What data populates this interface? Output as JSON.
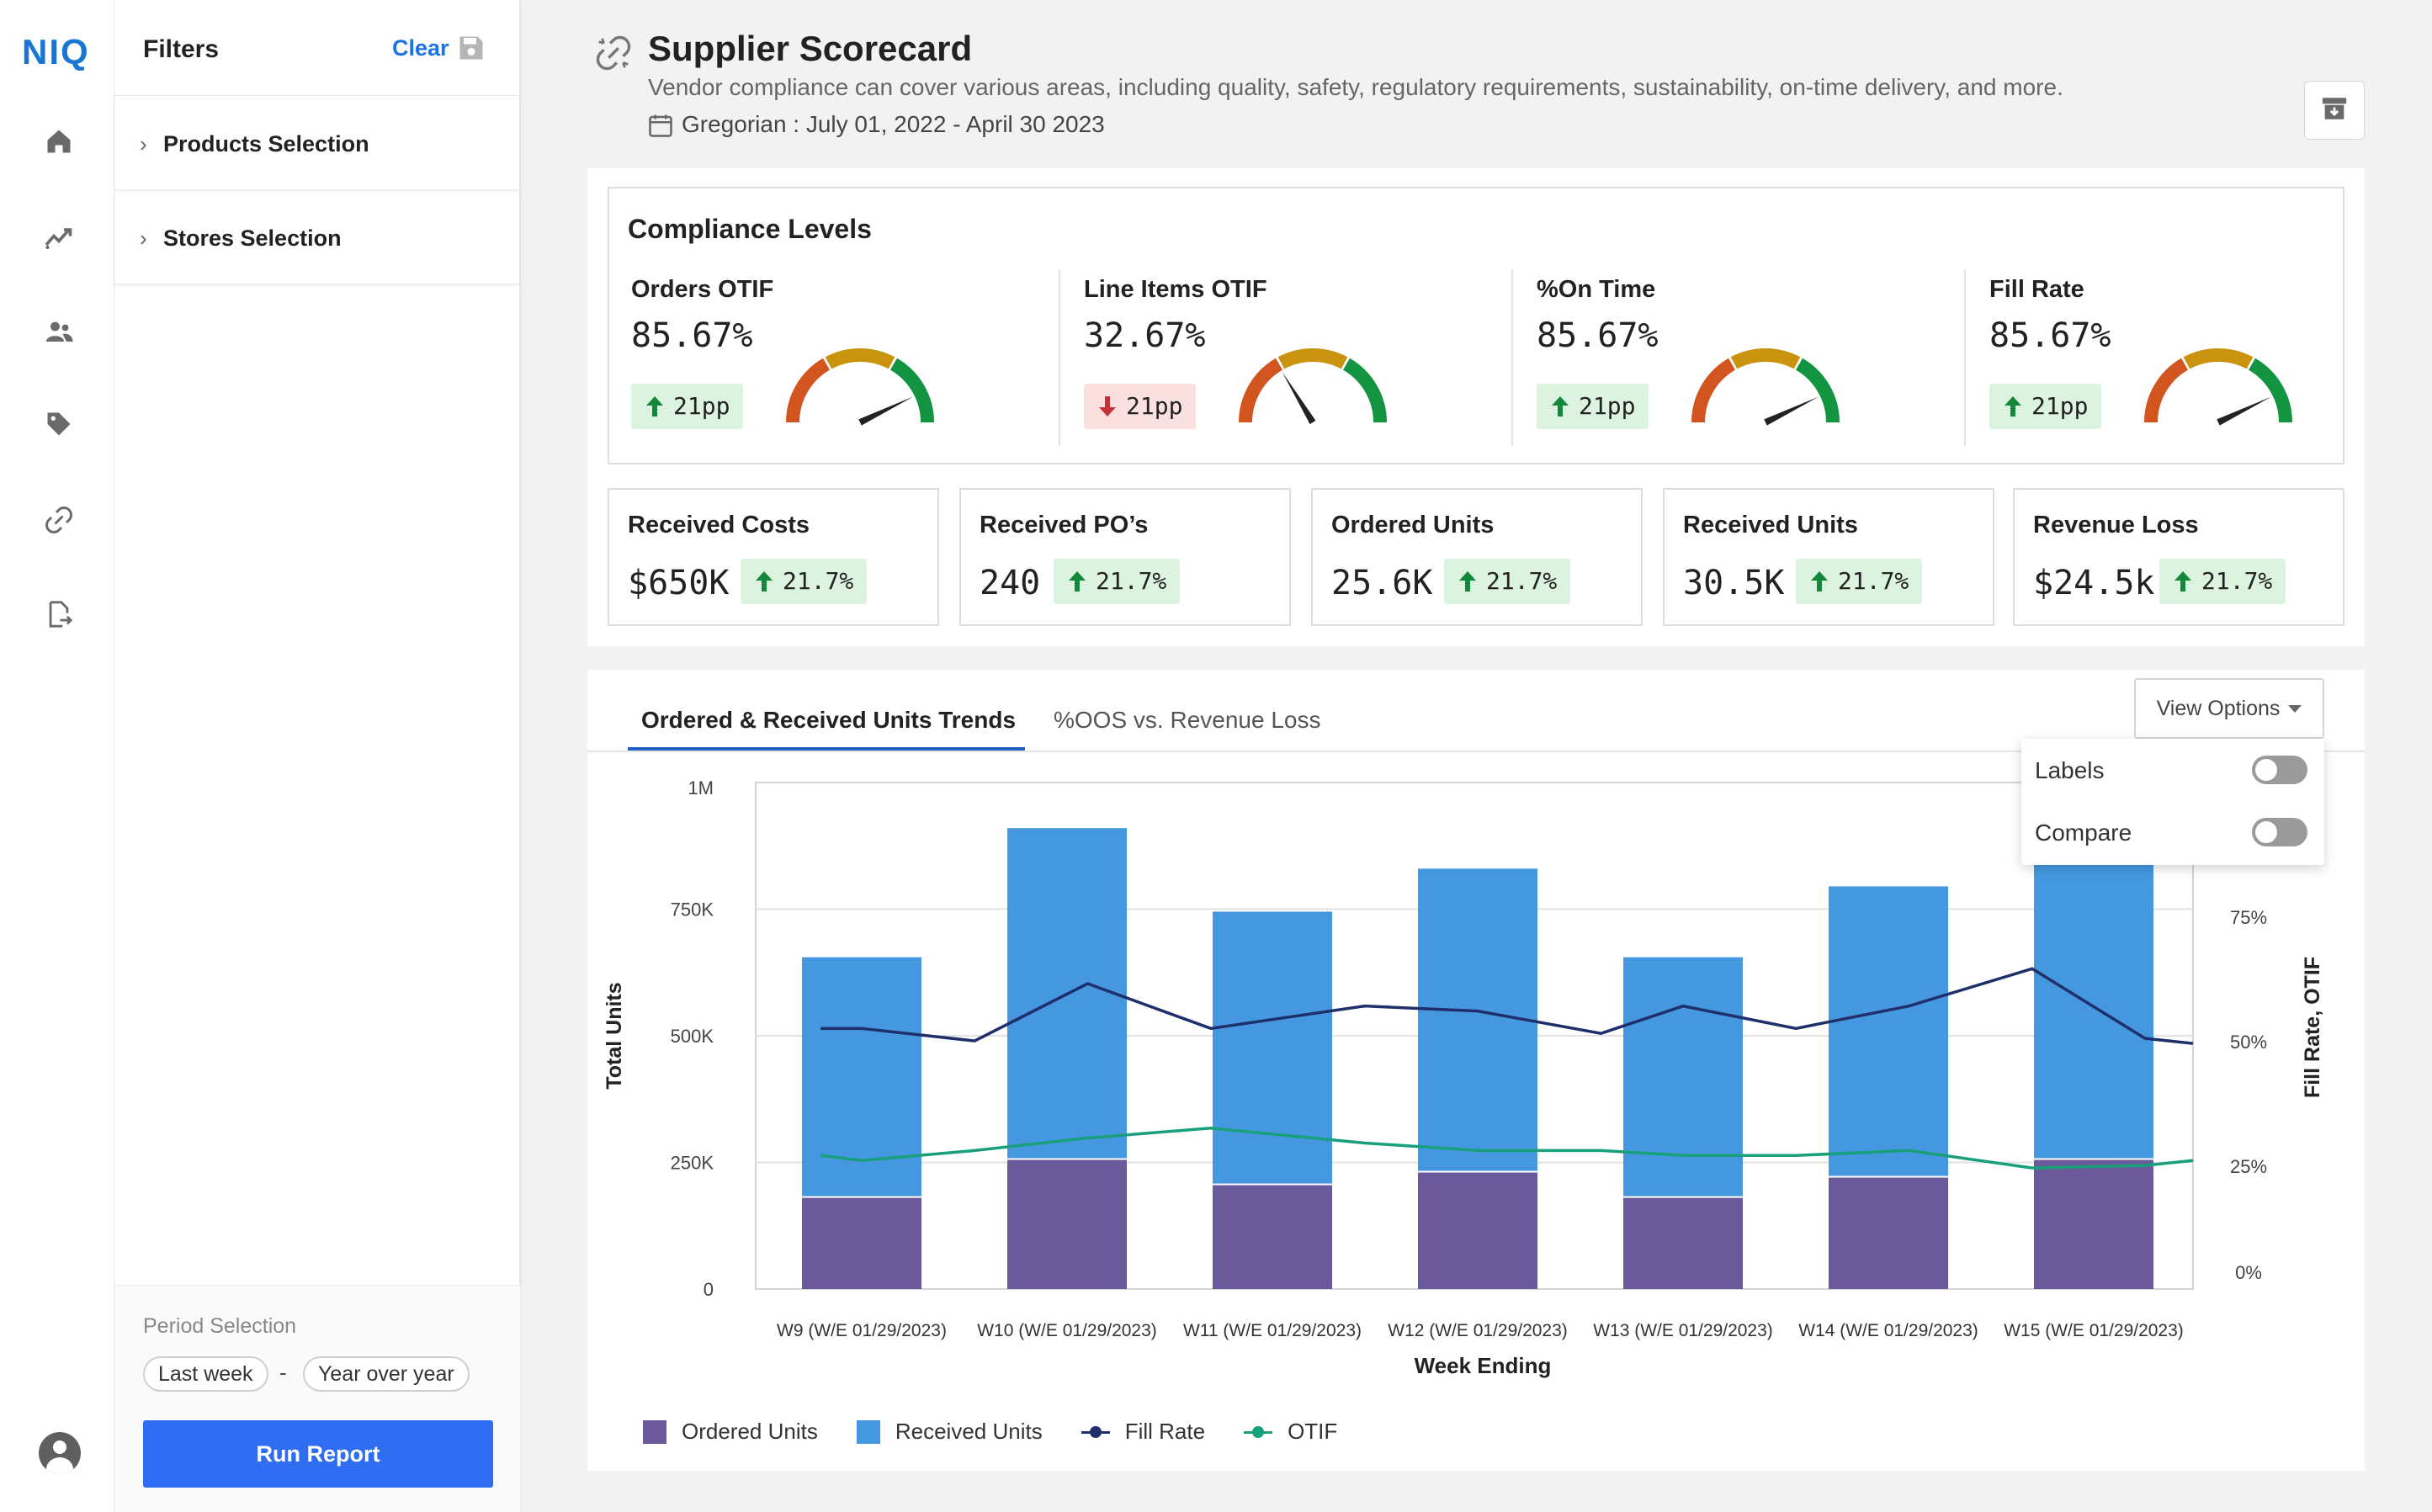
{
  "app": {
    "logo": "NIQ"
  },
  "rail": {
    "icons": [
      "home-icon",
      "trend-icon",
      "users-icon",
      "tag-icon",
      "link-icon",
      "report-export-icon",
      "user-avatar-icon"
    ]
  },
  "filters": {
    "title": "Filters",
    "clear_label": "Clear",
    "sections": [
      {
        "label": "Products Selection"
      },
      {
        "label": "Stores Selection"
      }
    ],
    "period": {
      "title": "Period Selection",
      "from": "Last week",
      "separator": "-",
      "to": "Year over year"
    },
    "run_label": "Run Report"
  },
  "header": {
    "title": "Supplier Scorecard",
    "description": "Vendor compliance can cover various areas, including quality, safety, regulatory requirements, sustainability, on-time delivery, and more.",
    "date_range": "Gregorian : July 01, 2022  -  April 30 2023"
  },
  "compliance": {
    "title": "Compliance Levels",
    "gauges": [
      {
        "name": "Orders OTIF",
        "value": "85.67%",
        "delta": "21pp",
        "direction": "up",
        "level": 0.8567
      },
      {
        "name": "Line Items OTIF",
        "value": "32.67%",
        "delta": "21pp",
        "direction": "down",
        "level": 0.3267
      },
      {
        "name": "%On Time",
        "value": "85.67%",
        "delta": "21pp",
        "direction": "up",
        "level": 0.8567
      },
      {
        "name": "Fill Rate",
        "value": "85.67%",
        "delta": "21pp",
        "direction": "up",
        "level": 0.8567
      }
    ]
  },
  "metrics": [
    {
      "name": "Received Costs",
      "value": "$650K",
      "delta": "21.7%"
    },
    {
      "name": "Received PO’s",
      "value": "240",
      "delta": "21.7%"
    },
    {
      "name": "Ordered Units",
      "value": "25.6K",
      "delta": "21.7%"
    },
    {
      "name": "Received Units",
      "value": "30.5K",
      "delta": "21.7%"
    },
    {
      "name": "Revenue Loss",
      "value": "$24.5k",
      "delta": "21.7%"
    }
  ],
  "chart_panel": {
    "tabs": [
      {
        "label": "Ordered & Received Units Trends",
        "active": true
      },
      {
        "label": "%OOS vs. Revenue Loss",
        "active": false
      }
    ],
    "view_options_label": "View Options",
    "view_options": [
      {
        "label": "Labels",
        "on": false
      },
      {
        "label": "Compare",
        "on": false
      }
    ]
  },
  "colors": {
    "ordered": "#6a5a9c",
    "received": "#4598e0",
    "fill_rate": "#1f2f6b",
    "otif": "#17a07a",
    "gauge_red": "#d2541e",
    "gauge_yellow": "#c9930d",
    "gauge_green": "#139440",
    "primary": "#2f6ef2"
  },
  "chart_data": {
    "type": "bar",
    "stacked": true,
    "categories": [
      "W9 (W/E 01/29/2023)",
      "W10 (W/E 01/29/2023)",
      "W11 (W/E 01/29/2023)",
      "W12 (W/E 01/29/2023)",
      "W13 (W/E 01/29/2023)",
      "W14 (W/E 01/29/2023)",
      "W15 (W/E 01/29/2023)"
    ],
    "xlabel": "Week Ending",
    "ylabel": "Total Units",
    "y2label": "Fill Rate, OTIF",
    "ylim": [
      0,
      1000000
    ],
    "y_ticks": [
      "0",
      "250K",
      "500K",
      "750K",
      "1M"
    ],
    "y2lim": [
      0,
      100
    ],
    "y2_ticks": [
      "0%",
      "25%",
      "50%",
      "75%"
    ],
    "series": [
      {
        "name": "Ordered Units",
        "type": "bar",
        "axis": "left",
        "values": [
          180000,
          255000,
          205000,
          230000,
          180000,
          220000,
          255000
        ]
      },
      {
        "name": "Received Units",
        "type": "bar",
        "axis": "left",
        "values": [
          475000,
          655000,
          540000,
          600000,
          475000,
          575000,
          655000
        ]
      },
      {
        "name": "Fill Rate",
        "type": "line",
        "axis": "right",
        "x": [
          -0.2,
          0.0,
          0.55,
          1.1,
          1.7,
          2.45,
          3.0,
          3.6,
          4.0,
          4.55,
          5.1,
          5.7,
          6.25,
          6.8
        ],
        "values": [
          54,
          54,
          51.5,
          63,
          54,
          58.5,
          57.5,
          53,
          58.5,
          54,
          58.5,
          66,
          52,
          51
        ]
      },
      {
        "name": "OTIF",
        "type": "line",
        "axis": "right",
        "x": [
          -0.2,
          0.0,
          0.55,
          1.1,
          1.7,
          2.45,
          3.0,
          3.6,
          4.0,
          4.55,
          5.1,
          5.7,
          6.25,
          6.8
        ],
        "values": [
          28.5,
          27.5,
          29.5,
          32,
          34,
          31,
          29.5,
          29.5,
          28.5,
          28.5,
          29.5,
          26,
          26.5,
          27.5
        ]
      }
    ],
    "legend_position": "bottom-left",
    "grid": true
  }
}
